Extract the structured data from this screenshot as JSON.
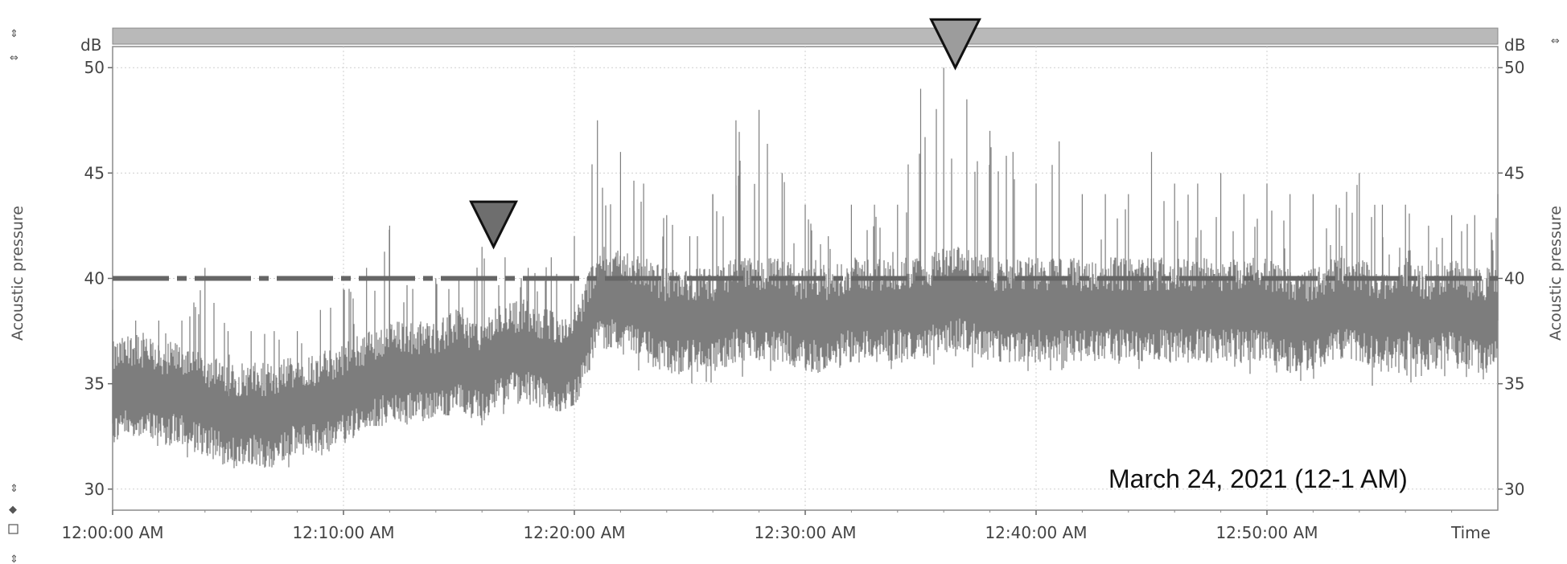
{
  "chart_data": {
    "type": "line",
    "xlabel": "Time",
    "ylabel": "Acoustic pressure",
    "y_unit": "dB",
    "ylim": [
      29,
      51
    ],
    "yticks": [
      "30",
      "35",
      "40",
      "45",
      "50"
    ],
    "xlim_minutes": [
      0,
      60
    ],
    "xticks": [
      "12:00:00 AM",
      "12:10:00 AM",
      "12:20:00 AM",
      "12:30:00 AM",
      "12:40:00 AM",
      "12:50:00 AM"
    ],
    "grid": true,
    "annotation": "March 24, 2021 (12-1 AM)",
    "threshold": {
      "style": "dash-dot",
      "value": 40
    },
    "markers": [
      {
        "x_minute": 16.5,
        "value": 41.5
      },
      {
        "x_minute": 36.5,
        "value": 50
      }
    ],
    "series": [
      {
        "x_minute": [
          0,
          1,
          2,
          3,
          4,
          5,
          6,
          7,
          8,
          9,
          10,
          11,
          12,
          13,
          14,
          15,
          16,
          17,
          18,
          19,
          20,
          21,
          22,
          23,
          24,
          25,
          26,
          27,
          28,
          29,
          30,
          31,
          32,
          33,
          34,
          35,
          36,
          37,
          38,
          39,
          40,
          41,
          42,
          43,
          44,
          45,
          46,
          47,
          48,
          49,
          50,
          51,
          52,
          53,
          54,
          55,
          56,
          57,
          58,
          59,
          60
        ],
        "mean": [
          34.5,
          35,
          34.5,
          34.5,
          34,
          33.5,
          33.5,
          33.5,
          34,
          34,
          34.5,
          35,
          35.5,
          35.5,
          35.5,
          36,
          35.5,
          36.5,
          36.5,
          36,
          36,
          39,
          39,
          38.5,
          38,
          38,
          38,
          38.5,
          38.5,
          38.5,
          38,
          38,
          38.5,
          38.5,
          38.5,
          38.5,
          39,
          39,
          38.5,
          38.5,
          38.5,
          38.5,
          38.5,
          38.5,
          38.5,
          38.5,
          38.5,
          38.5,
          38.5,
          38.5,
          38.5,
          38,
          38,
          38.5,
          38.5,
          38,
          38.5,
          38,
          38.5,
          38,
          38
        ],
        "min": [
          31.5,
          32,
          32,
          31.5,
          31.5,
          31,
          30.8,
          31,
          31,
          31.5,
          32,
          33,
          33,
          33,
          33.5,
          33.5,
          33,
          33.5,
          34,
          33.5,
          34,
          35.5,
          36,
          35.5,
          35.5,
          35,
          35,
          35,
          35.5,
          35.5,
          35,
          35,
          35.5,
          35.5,
          35.5,
          35.5,
          35.5,
          35.5,
          35.5,
          35.5,
          35.5,
          35,
          35.5,
          35.5,
          35,
          35.5,
          35.5,
          35.5,
          35.5,
          35.5,
          35,
          34.5,
          35,
          35,
          35.5,
          34.5,
          35,
          34.5,
          35.5,
          34.5,
          35
        ],
        "max": [
          38.5,
          38,
          38,
          38,
          40.5,
          37.5,
          37.5,
          37.5,
          37.5,
          38.5,
          39.5,
          40.5,
          42.5,
          39.5,
          40,
          40,
          41.5,
          41,
          40.5,
          41,
          42,
          47.5,
          46,
          44.5,
          43,
          42,
          44,
          47.5,
          48,
          45,
          43.5,
          42,
          43.5,
          43.5,
          43.5,
          49,
          50,
          48.5,
          47,
          46,
          44.5,
          46.5,
          44,
          44,
          44,
          46,
          44.5,
          44.5,
          45,
          44,
          44.5,
          44,
          44,
          43.5,
          45,
          43.5,
          43.5,
          42.5,
          43,
          43,
          44
        ]
      }
    ]
  }
}
